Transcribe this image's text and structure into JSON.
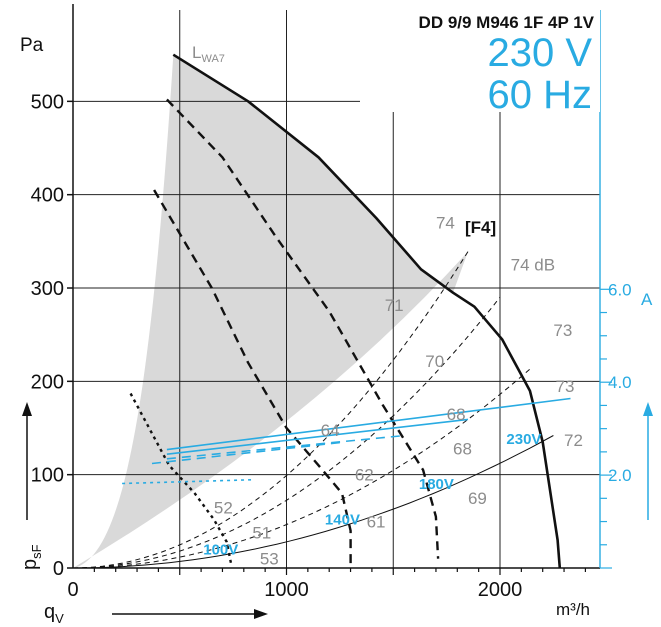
{
  "chart_data": {
    "type": "line",
    "title": "DD 9/9 M946 1F 4P 1V",
    "voltage": "230 V",
    "frequency": "60 Hz",
    "xlabel": "q",
    "xlabel_sub": "V",
    "xunit": "m³/h",
    "ylabel": "p",
    "ylabel_sub": "sF",
    "yunit": "Pa",
    "right_axis_unit": "A",
    "xlim": [
      0,
      2500
    ],
    "ylim": [
      0,
      600
    ],
    "right_ylim": [
      0,
      8
    ],
    "x_ticks": [
      "0",
      "1000",
      "2000"
    ],
    "x_tick_values": [
      0,
      1000,
      2000
    ],
    "y_ticks": [
      "0",
      "100",
      "200",
      "300",
      "400",
      "500"
    ],
    "y_tick_values": [
      0,
      100,
      200,
      300,
      400,
      500
    ],
    "right_ticks": [
      "2.0",
      "4.0",
      "6.0"
    ],
    "right_tick_values": [
      2,
      4,
      6
    ],
    "noise_label": "L",
    "noise_label_sub": "WA7",
    "operating_point_label": "[F4]",
    "pressure_curves": [
      {
        "name": "230V",
        "style": "solid",
        "points": [
          [
            470,
            550
          ],
          [
            820,
            500
          ],
          [
            1150,
            440
          ],
          [
            1420,
            375
          ],
          [
            1630,
            320
          ],
          [
            1780,
            295
          ],
          [
            1880,
            280
          ],
          [
            2010,
            245
          ],
          [
            2140,
            190
          ],
          [
            2200,
            135
          ],
          [
            2270,
            30
          ],
          [
            2280,
            0
          ]
        ]
      },
      {
        "name": "180V",
        "style": "dash",
        "points": [
          [
            440,
            502
          ],
          [
            700,
            440
          ],
          [
            950,
            355
          ],
          [
            1200,
            275
          ],
          [
            1450,
            175
          ],
          [
            1640,
            105
          ],
          [
            1700,
            55
          ],
          [
            1710,
            10
          ]
        ]
      },
      {
        "name": "140V",
        "style": "dash",
        "points": [
          [
            380,
            405
          ],
          [
            650,
            300
          ],
          [
            820,
            220
          ],
          [
            1000,
            150
          ],
          [
            1150,
            110
          ],
          [
            1260,
            80
          ],
          [
            1300,
            40
          ],
          [
            1300,
            5
          ]
        ]
      },
      {
        "name": "100V",
        "style": "dot",
        "points": [
          [
            270,
            187
          ],
          [
            450,
            110
          ],
          [
            570,
            80
          ],
          [
            660,
            52
          ],
          [
            720,
            28
          ],
          [
            740,
            5
          ]
        ]
      }
    ],
    "current_curves": [
      {
        "name": "230V",
        "style": "solid",
        "points": [
          [
            440,
            2.55
          ],
          [
            2330,
            3.65
          ]
        ]
      },
      {
        "name": "230V-2",
        "style": "solid",
        "points": [
          [
            440,
            2.45
          ],
          [
            1850,
            3.2
          ]
        ]
      },
      {
        "name": "180V",
        "style": "dash",
        "points": [
          [
            440,
            2.35
          ],
          [
            1550,
            2.85
          ]
        ]
      },
      {
        "name": "140V",
        "style": "dash",
        "points": [
          [
            370,
            2.25
          ],
          [
            1250,
            2.7
          ]
        ]
      },
      {
        "name": "100V",
        "style": "dot",
        "points": [
          [
            230,
            1.82
          ],
          [
            850,
            1.9
          ]
        ]
      }
    ],
    "system_curves": [
      {
        "points": [
          [
            0,
            0
          ],
          [
            1850,
            339
          ]
        ]
      },
      {
        "points": [
          [
            0,
            0
          ],
          [
            2000,
            290
          ]
        ]
      },
      {
        "points": [
          [
            0,
            0
          ],
          [
            2150,
            215
          ]
        ]
      },
      {
        "points": [
          [
            0,
            0
          ],
          [
            2250,
            142
          ]
        ]
      }
    ],
    "voltage_labels": [
      {
        "text": "230V",
        "x": 2030,
        "y": 138
      },
      {
        "text": "180V",
        "x": 1620,
        "y": 90
      },
      {
        "text": "140V",
        "x": 1180,
        "y": 52
      },
      {
        "text": "100V",
        "x": 610,
        "y": 20
      }
    ],
    "db_labels": [
      {
        "text": "74",
        "x": 1700,
        "y": 370
      },
      {
        "text": "74 dB",
        "x": 2050,
        "y": 325
      },
      {
        "text": "73",
        "x": 2250,
        "y": 255
      },
      {
        "text": "73",
        "x": 2260,
        "y": 195
      },
      {
        "text": "72",
        "x": 2300,
        "y": 137
      },
      {
        "text": "71",
        "x": 1460,
        "y": 282
      },
      {
        "text": "70",
        "x": 1650,
        "y": 222
      },
      {
        "text": "68",
        "x": 1750,
        "y": 165
      },
      {
        "text": "68",
        "x": 1780,
        "y": 128
      },
      {
        "text": "69",
        "x": 1850,
        "y": 75
      },
      {
        "text": "64",
        "x": 1160,
        "y": 148
      },
      {
        "text": "62",
        "x": 1320,
        "y": 100
      },
      {
        "text": "61",
        "x": 1375,
        "y": 50
      },
      {
        "text": "52",
        "x": 660,
        "y": 65
      },
      {
        "text": "51",
        "x": 840,
        "y": 38
      },
      {
        "text": "53",
        "x": 875,
        "y": 10
      }
    ]
  }
}
